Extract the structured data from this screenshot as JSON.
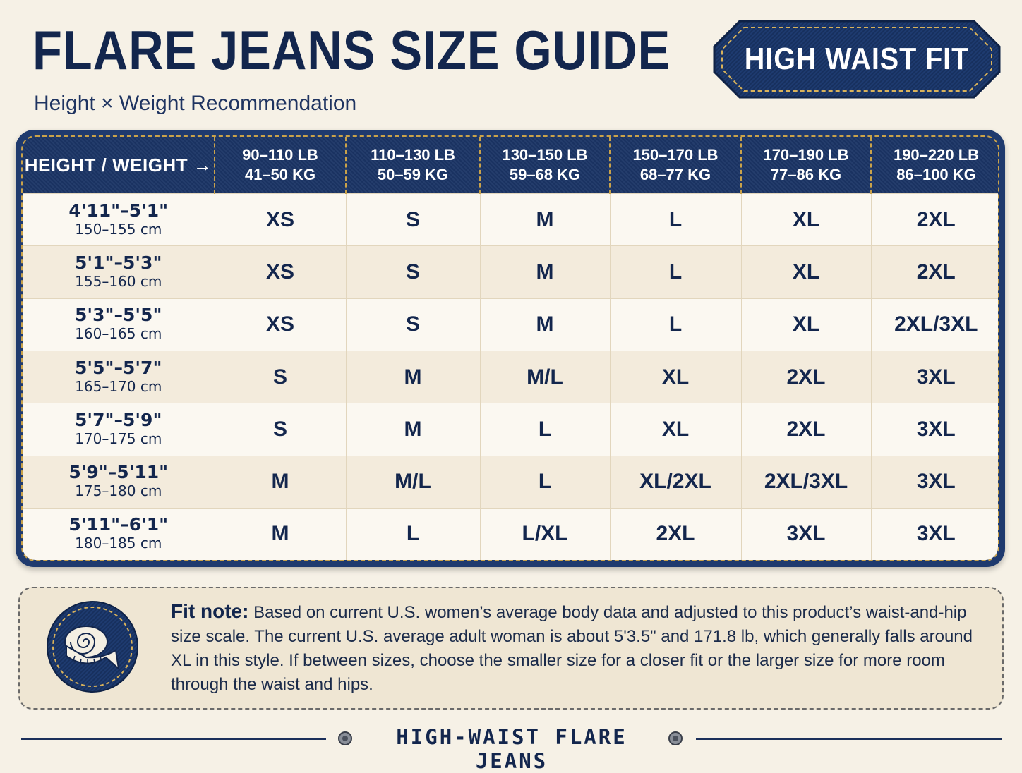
{
  "header": {
    "title": "FLARE JEANS SIZE GUIDE",
    "subtitle": "Height × Weight Recommendation",
    "badge": "HIGH WAIST FIT"
  },
  "table": {
    "corner_label": "HEIGHT / WEIGHT →",
    "columns": [
      {
        "lb": "90–110 LB",
        "kg": "41–50 KG"
      },
      {
        "lb": "110–130 LB",
        "kg": "50–59 KG"
      },
      {
        "lb": "130–150 LB",
        "kg": "59–68 KG"
      },
      {
        "lb": "150–170 LB",
        "kg": "68–77 KG"
      },
      {
        "lb": "170–190 LB",
        "kg": "77–86 KG"
      },
      {
        "lb": "190–220 LB",
        "kg": "86–100 KG"
      }
    ],
    "rows": [
      {
        "height_in": "4'11\"–5'1\"",
        "height_cm": "150–155 cm",
        "sizes": [
          "XS",
          "S",
          "M",
          "L",
          "XL",
          "2XL"
        ]
      },
      {
        "height_in": "5'1\"–5'3\"",
        "height_cm": "155–160 cm",
        "sizes": [
          "XS",
          "S",
          "M",
          "L",
          "XL",
          "2XL"
        ]
      },
      {
        "height_in": "5'3\"–5'5\"",
        "height_cm": "160–165 cm",
        "sizes": [
          "XS",
          "S",
          "M",
          "L",
          "XL",
          "2XL/3XL"
        ]
      },
      {
        "height_in": "5'5\"–5'7\"",
        "height_cm": "165–170 cm",
        "sizes": [
          "S",
          "M",
          "M/L",
          "XL",
          "2XL",
          "3XL"
        ]
      },
      {
        "height_in": "5'7\"–5'9\"",
        "height_cm": "170–175 cm",
        "sizes": [
          "S",
          "M",
          "L",
          "XL",
          "2XL",
          "3XL"
        ]
      },
      {
        "height_in": "5'9\"–5'11\"",
        "height_cm": "175–180 cm",
        "sizes": [
          "M",
          "M/L",
          "L",
          "XL/2XL",
          "2XL/3XL",
          "3XL"
        ]
      },
      {
        "height_in": "5'11\"–6'1\"",
        "height_cm": "180–185 cm",
        "sizes": [
          "M",
          "L",
          "L/XL",
          "2XL",
          "3XL",
          "3XL"
        ]
      }
    ]
  },
  "note": {
    "label": "Fit note:",
    "text": "Based on current U.S. women’s average body data and adjusted to this product’s waist-and-hip size scale. The current U.S. average adult woman is about 5'3.5\" and 171.8 lb, which generally falls around XL in this style. If between sizes, choose the smaller size for a closer fit or the larger size for more room through the waist and hips.",
    "icon": "measuring-tape-icon"
  },
  "footer": {
    "text": "HIGH-WAIST FLARE JEANS"
  },
  "colors": {
    "navy": "#13264d",
    "denim": "#1b3566",
    "stitch": "#c9a24a",
    "cream": "#f6f1e6"
  }
}
